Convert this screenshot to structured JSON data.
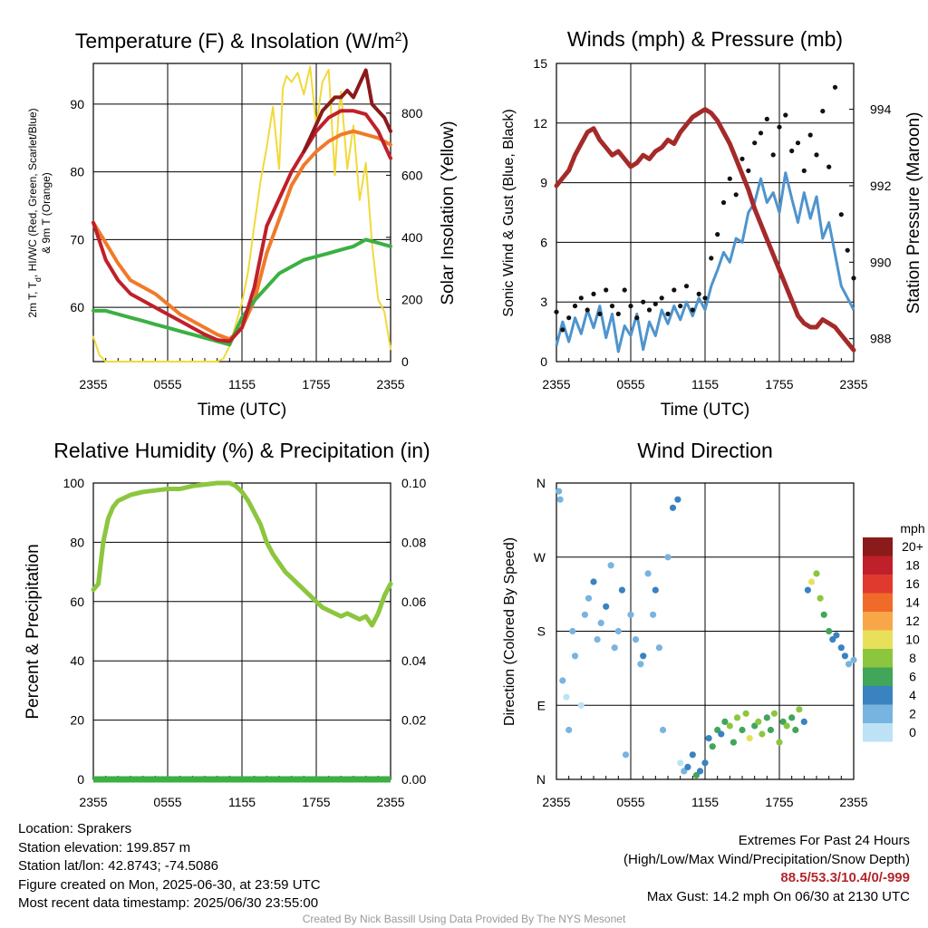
{
  "chart_data": [
    {
      "id": "temp",
      "type": "line",
      "title": "Temperature (F) & Insolation (W/m²)",
      "xlabel": "Time (UTC)",
      "ylabel": "2m T, Td, HI/WC (Red, Green, Scarlet/Blue) & 9m T (Orange)",
      "ylabel_line1": "2m T, T",
      "ylabel_sub": "d",
      "ylabel_line1_rest": ", HI/WC (Red, Green, Scarlet/Blue)",
      "ylabel_line2": "& 9m T (Orange)",
      "y2label": "Solar Insolation (Yellow)",
      "x_ticks": [
        "2355",
        "0555",
        "1155",
        "1755",
        "2355"
      ],
      "ylim": [
        52,
        96
      ],
      "y_ticks": [
        60,
        70,
        80,
        90
      ],
      "y2lim": [
        0,
        960
      ],
      "y2_ticks": [
        0,
        200,
        400,
        600,
        800
      ],
      "grid": true,
      "series": [
        {
          "key": "dewpoint",
          "color": "#3cb043",
          "axis": "left",
          "x": [
            0,
            1,
            2,
            3,
            4,
            5,
            6,
            7,
            8,
            9,
            10,
            11,
            12,
            13,
            14,
            15,
            16,
            17,
            18,
            19,
            20,
            21,
            22,
            23,
            24
          ],
          "y": [
            59.5,
            59.5,
            59,
            58.5,
            58,
            57.5,
            57,
            56.5,
            56,
            55.5,
            55,
            54.5,
            58.5,
            61,
            63,
            65,
            66,
            67,
            67.5,
            68,
            68.5,
            69,
            70,
            69.5,
            69
          ]
        },
        {
          "key": "temp_2m",
          "color": "#c0202a",
          "axis": "left",
          "x": [
            0,
            1,
            2,
            3,
            4,
            5,
            6,
            7,
            8,
            9,
            10,
            11,
            12,
            13,
            14,
            15,
            16,
            17,
            18,
            19,
            20,
            21,
            22,
            23,
            24
          ],
          "y": [
            72.5,
            67,
            64,
            62,
            61,
            60,
            59,
            58,
            57,
            56,
            55.2,
            55,
            57,
            63,
            72,
            76,
            80,
            83,
            86,
            88,
            89,
            89,
            88.5,
            86,
            82
          ]
        },
        {
          "key": "temp_9m",
          "color": "#f07a2a",
          "axis": "left",
          "x": [
            0,
            1,
            2,
            3,
            4,
            5,
            6,
            7,
            8,
            9,
            10,
            11,
            12,
            13,
            14,
            15,
            16,
            17,
            18,
            19,
            20,
            21,
            22,
            23,
            24
          ],
          "y": [
            72.5,
            69.5,
            66.5,
            64,
            63,
            62,
            60.5,
            59,
            58,
            57,
            56,
            55.3,
            57,
            61,
            68,
            73,
            78,
            81,
            83,
            84.5,
            85.5,
            86,
            85.5,
            85,
            84
          ]
        },
        {
          "key": "heat_index",
          "color": "#8b1a1a",
          "axis": "left",
          "x": [
            17,
            17.5,
            18,
            18.5,
            19,
            19.5,
            20,
            20.5,
            21,
            21.5,
            22,
            22.5,
            23,
            23.5,
            24
          ],
          "y": [
            83,
            85,
            87,
            89,
            90,
            91,
            91,
            92,
            91,
            93,
            95,
            90,
            89,
            88,
            86
          ]
        },
        {
          "key": "insolation",
          "color": "#f2d93a",
          "axis": "right",
          "x": [
            0,
            0.5,
            1,
            2,
            3,
            4,
            5,
            6,
            7,
            8,
            9,
            10,
            10.5,
            11,
            11.5,
            12,
            12.5,
            13,
            13.5,
            14,
            14.5,
            14.8,
            15,
            15.3,
            15.6,
            16,
            16.5,
            17,
            17.5,
            18,
            18.5,
            19,
            19.5,
            19.8,
            20,
            20.5,
            21,
            21.5,
            22,
            22.5,
            23,
            23.5,
            24
          ],
          "y": [
            80,
            20,
            0,
            0,
            0,
            0,
            0,
            0,
            0,
            0,
            0,
            0,
            10,
            50,
            120,
            190,
            290,
            440,
            580,
            690,
            820,
            700,
            620,
            880,
            920,
            900,
            930,
            860,
            950,
            760,
            900,
            940,
            600,
            800,
            870,
            620,
            760,
            520,
            640,
            380,
            200,
            160,
            40
          ]
        }
      ]
    },
    {
      "id": "wind",
      "type": "line",
      "title": "Winds (mph) & Pressure (mb)",
      "xlabel": "Time (UTC)",
      "ylabel": "Sonic Wind & Gust (Blue, Black)",
      "y2label": "Station Pressure (Maroon)",
      "x_ticks": [
        "2355",
        "0555",
        "1155",
        "1755",
        "2355"
      ],
      "ylim": [
        0,
        15
      ],
      "y_ticks": [
        0,
        3,
        6,
        9,
        12,
        15
      ],
      "y2lim": [
        987.4,
        995.2
      ],
      "y2_ticks": [
        988,
        990,
        992,
        994
      ],
      "grid": true,
      "series": [
        {
          "key": "wind_speed",
          "color": "#4f94cd",
          "axis": "left",
          "x": [
            0,
            0.5,
            1,
            1.5,
            2,
            2.5,
            3,
            3.5,
            4,
            4.5,
            5,
            5.5,
            6,
            6.5,
            7,
            7.5,
            8,
            8.5,
            9,
            9.5,
            10,
            10.5,
            11,
            11.5,
            12,
            12.5,
            13,
            13.5,
            14,
            14.5,
            15,
            15.5,
            16,
            16.5,
            17,
            17.5,
            18,
            18.5,
            19,
            19.5,
            20,
            20.5,
            21,
            21.5,
            22,
            22.5,
            23,
            23.5,
            24
          ],
          "y": [
            0.8,
            2,
            1,
            2.2,
            1.4,
            2.6,
            1.7,
            2.8,
            1.2,
            2.4,
            0.5,
            1.8,
            1.3,
            2.4,
            0.6,
            2,
            1.3,
            2.6,
            1.9,
            2.8,
            2.1,
            3,
            2.3,
            3.2,
            2.6,
            3.8,
            4.6,
            5.5,
            5,
            6.2,
            6,
            7.5,
            8,
            9.2,
            8,
            8.5,
            7.5,
            9.5,
            8.2,
            7,
            8.5,
            7.2,
            8.3,
            6.2,
            7,
            5.4,
            3.8,
            3.2,
            2.6
          ]
        },
        {
          "key": "wind_gust",
          "color": "#111111",
          "axis": "left",
          "x": [
            0,
            0.5,
            1,
            1.5,
            2,
            2.5,
            3,
            3.5,
            4,
            4.5,
            5,
            5.5,
            6,
            6.5,
            7,
            7.5,
            8,
            8.5,
            9,
            9.5,
            10,
            10.5,
            11,
            11.5,
            12,
            12.5,
            13,
            13.5,
            14,
            14.5,
            15,
            15.5,
            16,
            16.5,
            17,
            17.5,
            18,
            18.5,
            19,
            19.5,
            20,
            20.5,
            21,
            21.5,
            22,
            22.5,
            23,
            23.5,
            24
          ],
          "y": [
            2.5,
            1.6,
            2.2,
            2.8,
            3.2,
            2.6,
            3.4,
            2.4,
            3.6,
            2.8,
            2.4,
            3.6,
            2.8,
            2.2,
            3,
            2.6,
            2.9,
            3.2,
            2.4,
            3.6,
            2.8,
            3.8,
            2.6,
            3.4,
            3.2,
            5.2,
            6.4,
            8,
            9.2,
            8.4,
            10.2,
            9.6,
            11,
            11.5,
            12.2,
            10.4,
            11.8,
            12.4,
            10.6,
            11,
            9.6,
            11.4,
            10.4,
            12.6,
            9.8,
            13.8,
            7.4,
            5.6,
            4.2
          ]
        },
        {
          "key": "pressure",
          "color": "#a52a2a",
          "axis": "right",
          "x": [
            0,
            0.5,
            1,
            1.5,
            2,
            2.5,
            3,
            3.5,
            4,
            4.5,
            5,
            5.5,
            6,
            6.5,
            7,
            7.5,
            8,
            8.5,
            9,
            9.5,
            10,
            10.5,
            11,
            11.5,
            12,
            12.5,
            13,
            13.5,
            14,
            14.5,
            15,
            15.5,
            16,
            16.5,
            17,
            17.5,
            18,
            18.5,
            19,
            19.5,
            20,
            20.5,
            21,
            21.5,
            22,
            22.5,
            23,
            23.5,
            24
          ],
          "y": [
            992,
            992.2,
            992.4,
            992.8,
            993.1,
            993.4,
            993.5,
            993.2,
            993.0,
            992.8,
            992.9,
            992.7,
            992.5,
            992.6,
            992.8,
            992.7,
            992.9,
            993.0,
            993.2,
            993.1,
            993.4,
            993.6,
            993.8,
            993.9,
            994.0,
            993.9,
            993.7,
            993.4,
            993.1,
            992.7,
            992.3,
            991.9,
            991.4,
            991.0,
            990.6,
            990.2,
            989.8,
            989.4,
            989.0,
            988.6,
            988.4,
            988.3,
            988.3,
            988.5,
            988.4,
            988.3,
            988.1,
            987.9,
            987.7
          ]
        }
      ]
    },
    {
      "id": "rh",
      "type": "line",
      "title": "Relative Humidity (%) & Precipitation (in)",
      "xlabel": "",
      "ylabel": "Percent & Precipitation",
      "x_ticks": [
        "2355",
        "0555",
        "1155",
        "1755",
        "2355"
      ],
      "ylim": [
        0,
        100
      ],
      "y_ticks": [
        0,
        20,
        40,
        60,
        80,
        100
      ],
      "y2lim": [
        0,
        0.1
      ],
      "y2_ticks": [
        "0.00",
        "0.02",
        "0.04",
        "0.06",
        "0.08",
        "0.10"
      ],
      "grid": true,
      "series": [
        {
          "key": "rh",
          "color": "#8cc63f",
          "axis": "left",
          "x": [
            0,
            0.4,
            0.8,
            1.2,
            1.6,
            2,
            2.5,
            3,
            3.5,
            4,
            5,
            6,
            7,
            8,
            9,
            10,
            11,
            11.5,
            12,
            12.5,
            13,
            13.5,
            14,
            14.5,
            15,
            15.5,
            16,
            16.5,
            17,
            17.5,
            18,
            18.5,
            19,
            19.5,
            20,
            20.5,
            21,
            21.5,
            22,
            22.5,
            23,
            23.5,
            24
          ],
          "y": [
            64,
            66,
            80,
            88,
            92,
            94,
            95,
            96,
            96.5,
            97,
            97.5,
            98,
            98,
            99,
            99.5,
            100,
            100,
            99,
            97,
            94,
            90,
            86,
            80,
            76,
            73,
            70,
            68,
            66,
            64,
            62,
            60,
            58,
            57,
            56,
            55,
            56,
            55,
            54,
            55,
            52,
            56,
            62,
            66
          ]
        },
        {
          "key": "precip",
          "color": "#3cb043",
          "axis": "right",
          "x": [
            0,
            24
          ],
          "y": [
            0,
            0
          ]
        }
      ]
    },
    {
      "id": "winddir",
      "type": "scatter",
      "title": "Wind Direction",
      "xlabel": "",
      "ylabel": "Direction (Colored By Speed)",
      "x_ticks": [
        "2355",
        "0555",
        "1155",
        "1755",
        "2355"
      ],
      "y_ticks": [
        "N",
        "E",
        "S",
        "W",
        "N"
      ],
      "ylim": [
        0,
        360
      ],
      "legend": {
        "title": "mph",
        "placement": "right",
        "labels": [
          "20+",
          "18",
          "16",
          "14",
          "12",
          "10",
          "8",
          "6",
          "4",
          "2",
          "0"
        ],
        "colors": [
          "#8b1a1a",
          "#c0202a",
          "#e03a2e",
          "#f06a2a",
          "#f7a748",
          "#e8e05a",
          "#8cc63f",
          "#41a55a",
          "#3a82c0",
          "#78b4e0",
          "#bde2f5"
        ]
      },
      "x": [
        0.2,
        0.3,
        0.5,
        0.8,
        1,
        1.3,
        1.5,
        2,
        2.3,
        2.6,
        3,
        3.3,
        3.6,
        4,
        4.4,
        4.7,
        5,
        5.3,
        5.6,
        6,
        6.4,
        6.8,
        7,
        7.4,
        7.8,
        8,
        8.3,
        8.6,
        9,
        9.4,
        9.8,
        10,
        10.3,
        10.6,
        11,
        11.3,
        11.6,
        12,
        12.3,
        12.6,
        13,
        13.3,
        13.6,
        14,
        14.3,
        14.6,
        15,
        15.3,
        15.6,
        16,
        16.3,
        16.6,
        17,
        17.3,
        17.6,
        18,
        18.3,
        18.6,
        19,
        19.3,
        19.6,
        20,
        20.3,
        20.6,
        21,
        21.3,
        21.6,
        22,
        22.3,
        22.6,
        23,
        23.3,
        23.6,
        24
      ],
      "y": [
        350,
        340,
        120,
        100,
        60,
        180,
        150,
        90,
        200,
        220,
        240,
        170,
        190,
        210,
        260,
        160,
        180,
        230,
        30,
        200,
        170,
        140,
        150,
        250,
        200,
        230,
        160,
        60,
        270,
        330,
        340,
        20,
        10,
        15,
        30,
        5,
        10,
        20,
        50,
        40,
        60,
        55,
        70,
        65,
        45,
        75,
        60,
        80,
        50,
        65,
        70,
        55,
        75,
        60,
        80,
        45,
        70,
        65,
        75,
        60,
        85,
        70,
        230,
        240,
        250,
        220,
        200,
        180,
        170,
        175,
        160,
        150,
        140,
        145
      ],
      "speed": [
        1,
        2,
        1,
        0,
        1,
        1,
        2,
        0,
        1,
        2,
        3,
        1,
        2,
        3,
        2,
        1,
        2,
        3,
        1,
        2,
        2,
        1,
        3,
        2,
        1,
        4,
        1,
        2,
        1,
        3,
        4,
        0,
        2,
        3,
        3,
        5,
        4,
        3,
        4,
        5,
        6,
        4,
        6,
        7,
        5,
        8,
        6,
        7,
        9,
        5,
        7,
        8,
        6,
        5,
        7,
        8,
        6,
        7,
        6,
        5,
        8,
        4,
        3,
        10,
        8,
        7,
        6,
        5,
        4,
        3,
        4,
        3,
        2,
        1
      ]
    }
  ],
  "info": {
    "location": "Location: Sprakers",
    "elevation": "Station elevation: 199.857 m",
    "latlon": "Station lat/lon: 42.8743; -74.5086",
    "created": "Figure created on Mon, 2025-06-30, at 23:59 UTC",
    "recent": "Most recent data timestamp: 2025/06/30 23:55:00"
  },
  "extremes": {
    "title": "Extremes For Past 24 Hours",
    "subtitle": "(High/Low/Max Wind/Precipitation/Snow Depth)",
    "values": "88.5/53.3/10.4/0/-999",
    "gust": "Max Gust: 14.2 mph On 06/30 at 2130 UTC"
  },
  "credit": "Created By Nick Bassill Using Data Provided By The NYS Mesonet"
}
